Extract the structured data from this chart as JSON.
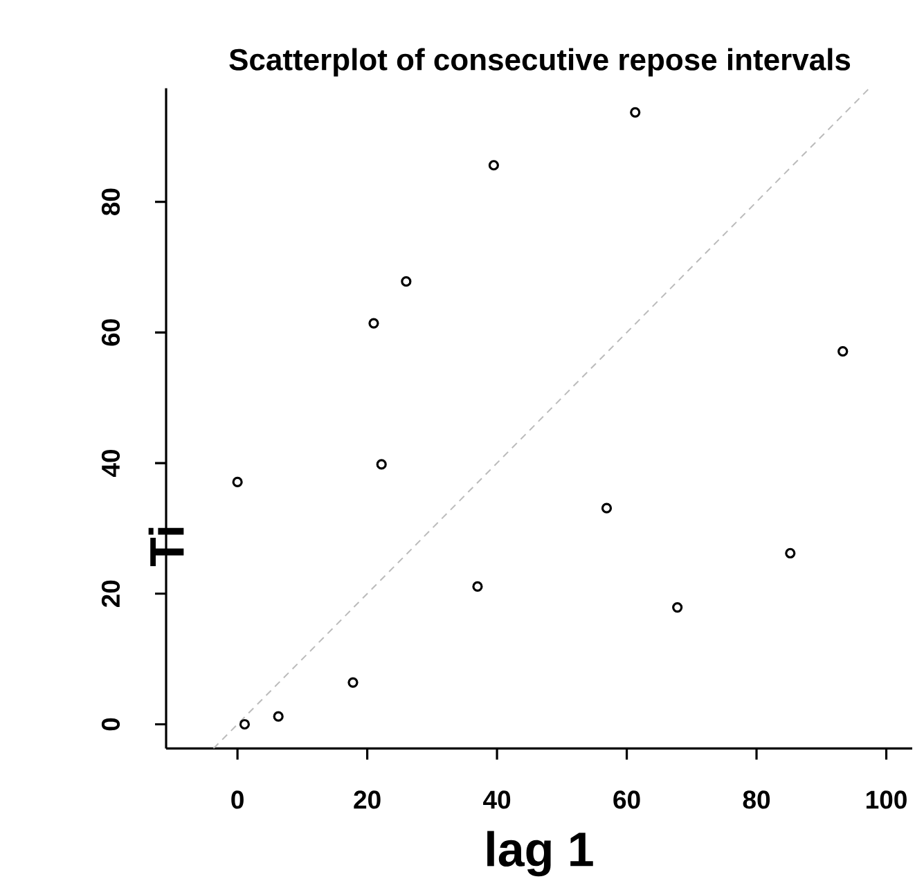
{
  "chart_data": {
    "type": "scatter",
    "title": "Scatterplot of consecutive repose intervals",
    "xlabel": "lag 1",
    "ylabel": "Ti",
    "xlim": [
      -11,
      104
    ],
    "ylim": [
      -3.7,
      97.4
    ],
    "xticks": [
      0,
      20,
      40,
      60,
      80,
      100
    ],
    "yticks": [
      0,
      20,
      40,
      60,
      80
    ],
    "grid": false,
    "series": [
      {
        "color": "#000000",
        "marker": "circle",
        "x": [
          0,
          1.1,
          6.3,
          17.8,
          22.2,
          37.0,
          56.9,
          67.8,
          85.2,
          21.0,
          26.0,
          39.5,
          61.3,
          93.3
        ],
        "values": [
          37.1,
          0,
          1.2,
          6.4,
          39.8,
          21.1,
          33.1,
          17.9,
          26.2,
          61.4,
          67.8,
          85.6,
          93.7,
          57.1
        ]
      },
      {
        "type": "line",
        "color": "#bbbbbb",
        "line_style": "dashed",
        "marker": "none",
        "x": [
          -3.7,
          97.4
        ],
        "values": [
          -3.7,
          97.4
        ]
      }
    ]
  }
}
